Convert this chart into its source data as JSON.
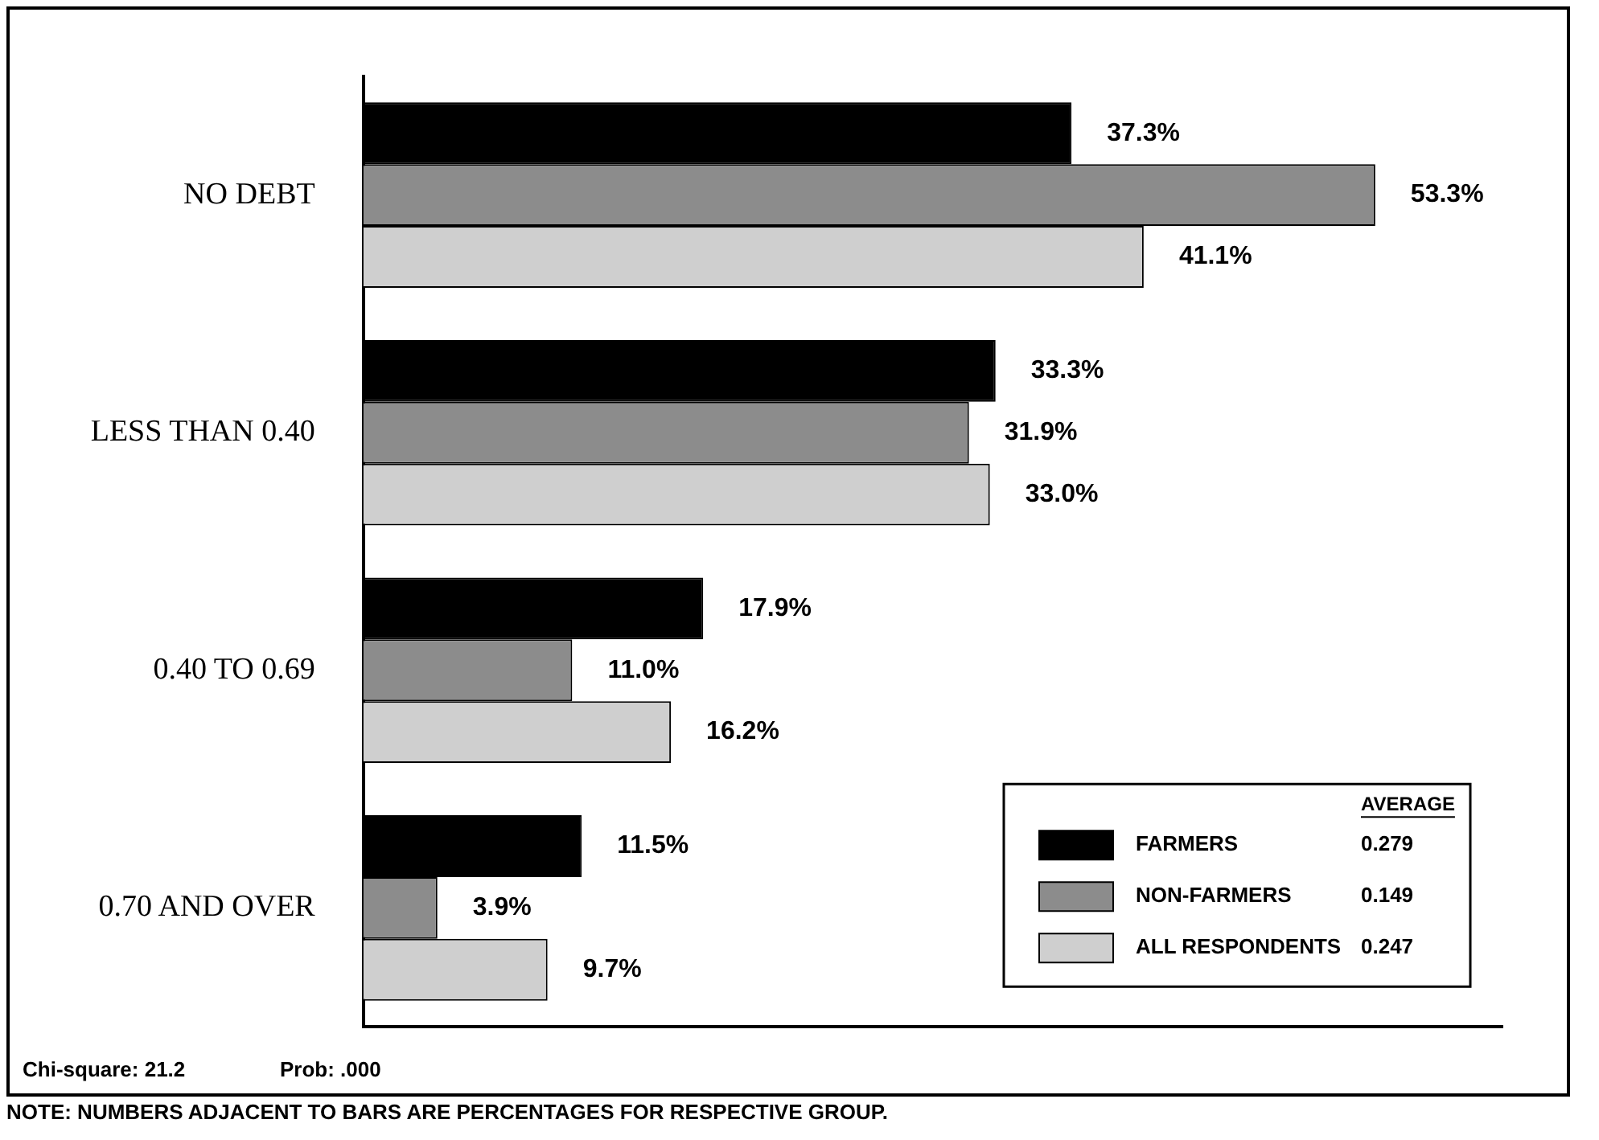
{
  "chart_data": {
    "type": "bar",
    "orientation": "horizontal",
    "categories": [
      "NO DEBT",
      "LESS THAN 0.40",
      "0.40 TO 0.69",
      "0.70 AND OVER"
    ],
    "series": [
      {
        "name": "FARMERS",
        "color": "#000000",
        "values": [
          37.3,
          33.3,
          17.9,
          11.5
        ],
        "value_labels": [
          "37.3%",
          "33.3%",
          "17.9%",
          "11.5%"
        ]
      },
      {
        "name": "NON-FARMERS",
        "color": "#8c8c8c",
        "values": [
          53.3,
          31.9,
          11.0,
          3.9
        ],
        "value_labels": [
          "53.3%",
          "31.9%",
          "11.0%",
          "3.9%"
        ]
      },
      {
        "name": "ALL RESPONDENTS",
        "color": "#cfcfcf",
        "values": [
          41.1,
          33.0,
          16.2,
          9.7
        ],
        "value_labels": [
          "41.1%",
          "33.0%",
          "16.2%",
          "9.7%"
        ]
      }
    ],
    "legend": "bottom right",
    "legend_title": "AVERAGE",
    "annotations": [
      "0.279",
      "0.149",
      "0.247",
      "Chi-square: 21.2",
      "Prob: .000",
      "NOTE: NUMBERS ADJACENT TO BARS ARE PERCENTAGES FOR RESPECTIVE GROUP."
    ]
  }
}
